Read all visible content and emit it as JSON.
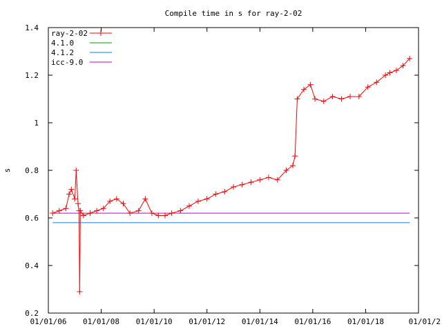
{
  "chart_data": {
    "type": "line",
    "title": "Compile time in s for ray-2-02",
    "xlabel": "",
    "ylabel": "s",
    "x_type": "date",
    "xlim": [
      "2006-01-01",
      "2020-01-01"
    ],
    "ylim": [
      0.2,
      1.4
    ],
    "x_ticks": [
      {
        "value": "2006-01-01",
        "label": "01/01/06"
      },
      {
        "value": "2008-01-01",
        "label": "01/01/08"
      },
      {
        "value": "2010-01-01",
        "label": "01/01/10"
      },
      {
        "value": "2012-01-01",
        "label": "01/01/12"
      },
      {
        "value": "2014-01-01",
        "label": "01/01/14"
      },
      {
        "value": "2016-01-01",
        "label": "01/01/16"
      },
      {
        "value": "2018-01-01",
        "label": "01/01/18"
      },
      {
        "value": "2020-01-01",
        "label": "01/01/2"
      }
    ],
    "y_ticks": [
      {
        "value": 0.2,
        "label": "0.2"
      },
      {
        "value": 0.4,
        "label": "0.4"
      },
      {
        "value": 0.6,
        "label": "0.6"
      },
      {
        "value": 0.8,
        "label": "0.8"
      },
      {
        "value": 1.0,
        "label": "1"
      },
      {
        "value": 1.2,
        "label": "1.2"
      },
      {
        "value": 1.4,
        "label": "1.4"
      }
    ],
    "grid": false,
    "legend_position": "top-left",
    "series": [
      {
        "name": "ray-2-02",
        "color": "#ff0000",
        "marker": "plus",
        "points": [
          [
            "2006-03-01",
            0.62
          ],
          [
            "2006-06-01",
            0.63
          ],
          [
            "2006-09-01",
            0.64
          ],
          [
            "2006-10-15",
            0.7
          ],
          [
            "2006-11-15",
            0.72
          ],
          [
            "2007-01-01",
            0.68
          ],
          [
            "2007-01-20",
            0.8
          ],
          [
            "2007-02-15",
            0.66
          ],
          [
            "2007-03-01",
            0.63
          ],
          [
            "2007-03-10",
            0.29
          ],
          [
            "2007-03-20",
            0.63
          ],
          [
            "2007-05-01",
            0.61
          ],
          [
            "2007-08-01",
            0.62
          ],
          [
            "2007-11-01",
            0.63
          ],
          [
            "2008-02-01",
            0.64
          ],
          [
            "2008-05-01",
            0.67
          ],
          [
            "2008-08-01",
            0.68
          ],
          [
            "2008-11-01",
            0.66
          ],
          [
            "2009-02-01",
            0.62
          ],
          [
            "2009-06-01",
            0.63
          ],
          [
            "2009-09-01",
            0.68
          ],
          [
            "2009-12-01",
            0.62
          ],
          [
            "2010-03-01",
            0.61
          ],
          [
            "2010-06-01",
            0.61
          ],
          [
            "2010-09-01",
            0.62
          ],
          [
            "2011-01-01",
            0.63
          ],
          [
            "2011-05-01",
            0.65
          ],
          [
            "2011-09-01",
            0.67
          ],
          [
            "2012-01-01",
            0.68
          ],
          [
            "2012-05-01",
            0.7
          ],
          [
            "2012-09-01",
            0.71
          ],
          [
            "2013-01-01",
            0.73
          ],
          [
            "2013-05-01",
            0.74
          ],
          [
            "2013-09-01",
            0.75
          ],
          [
            "2014-01-01",
            0.76
          ],
          [
            "2014-05-01",
            0.77
          ],
          [
            "2014-09-01",
            0.76
          ],
          [
            "2015-01-01",
            0.8
          ],
          [
            "2015-04-01",
            0.82
          ],
          [
            "2015-05-01",
            0.86
          ],
          [
            "2015-06-01",
            1.1
          ],
          [
            "2015-09-01",
            1.14
          ],
          [
            "2015-12-01",
            1.16
          ],
          [
            "2016-02-01",
            1.1
          ],
          [
            "2016-06-01",
            1.09
          ],
          [
            "2016-10-01",
            1.11
          ],
          [
            "2017-02-01",
            1.1
          ],
          [
            "2017-06-01",
            1.11
          ],
          [
            "2017-10-01",
            1.11
          ],
          [
            "2018-02-01",
            1.15
          ],
          [
            "2018-06-01",
            1.17
          ],
          [
            "2018-10-01",
            1.2
          ],
          [
            "2018-12-01",
            1.21
          ],
          [
            "2019-03-01",
            1.22
          ],
          [
            "2019-06-01",
            1.24
          ],
          [
            "2019-09-01",
            1.27
          ]
        ]
      },
      {
        "name": "4.1.0",
        "color": "#00a000",
        "marker": "none",
        "points": []
      },
      {
        "name": "4.1.2",
        "color": "#0080ff",
        "marker": "none",
        "points": [
          [
            "2006-03-01",
            0.58
          ],
          [
            "2019-09-01",
            0.58
          ]
        ]
      },
      {
        "name": "icc-9.0",
        "color": "#c000c0",
        "marker": "none",
        "points": [
          [
            "2006-03-01",
            0.62
          ],
          [
            "2019-09-01",
            0.62
          ]
        ]
      }
    ]
  }
}
